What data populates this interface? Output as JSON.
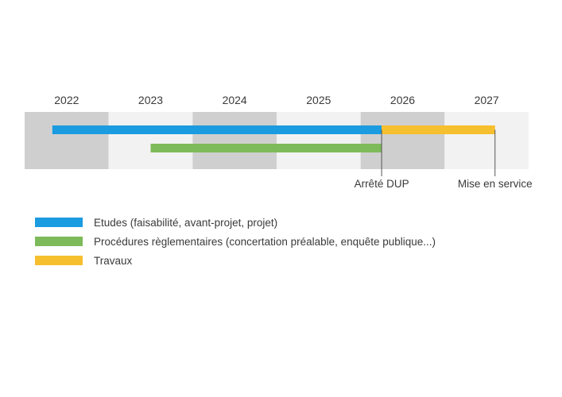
{
  "chart_data": {
    "type": "gantt",
    "years": [
      "2022",
      "2023",
      "2024",
      "2025",
      "2026",
      "2027"
    ],
    "xlim": [
      2022,
      2028
    ],
    "grid": "alternating-year-bands",
    "bands": {
      "dark": "#cfcfcf",
      "light": "#f2f2f2"
    },
    "series": [
      {
        "name": "Etudes (faisabilité, avant-projet, projet)",
        "start": 2022.33,
        "end": 2026.25,
        "color": "#1b9be0",
        "row": 0
      },
      {
        "name": "Procédures règlementaires (concertation préalable, enquête publique...)",
        "start": 2023.5,
        "end": 2026.25,
        "color": "#7dbb5a",
        "row": 1
      },
      {
        "name": "Travaux",
        "start": 2026.25,
        "end": 2027.6,
        "color": "#f6bf2e",
        "row": 0
      }
    ],
    "milestones": [
      {
        "label": "Arrêté DUP",
        "date": 2026.25
      },
      {
        "label": "Mise en service",
        "date": 2027.6
      }
    ]
  }
}
